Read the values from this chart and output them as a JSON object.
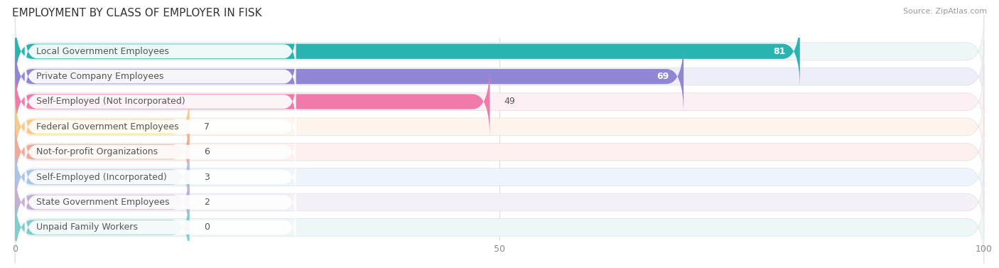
{
  "title": "EMPLOYMENT BY CLASS OF EMPLOYER IN FISK",
  "source": "Source: ZipAtlas.com",
  "categories": [
    "Local Government Employees",
    "Private Company Employees",
    "Self-Employed (Not Incorporated)",
    "Federal Government Employees",
    "Not-for-profit Organizations",
    "Self-Employed (Incorporated)",
    "State Government Employees",
    "Unpaid Family Workers"
  ],
  "values": [
    81,
    69,
    49,
    7,
    6,
    3,
    2,
    0
  ],
  "bar_colors": [
    "#28b5b2",
    "#8f86d4",
    "#f07aaa",
    "#f9c98a",
    "#f0a898",
    "#a8c4e8",
    "#c4aed4",
    "#7ecece"
  ],
  "row_bg_colors": [
    "#eef7f7",
    "#eeeef8",
    "#fdf0f5",
    "#fdf5ec",
    "#fdf0ee",
    "#eef4fc",
    "#f4f0f8",
    "#eef7f7"
  ],
  "xlim": [
    0,
    100
  ],
  "xticks": [
    0,
    50,
    100
  ],
  "label_color": "#555555",
  "title_fontsize": 11,
  "bar_label_fontsize": 9,
  "cat_label_fontsize": 9,
  "background_color": "#ffffff",
  "min_bar_display": 18
}
